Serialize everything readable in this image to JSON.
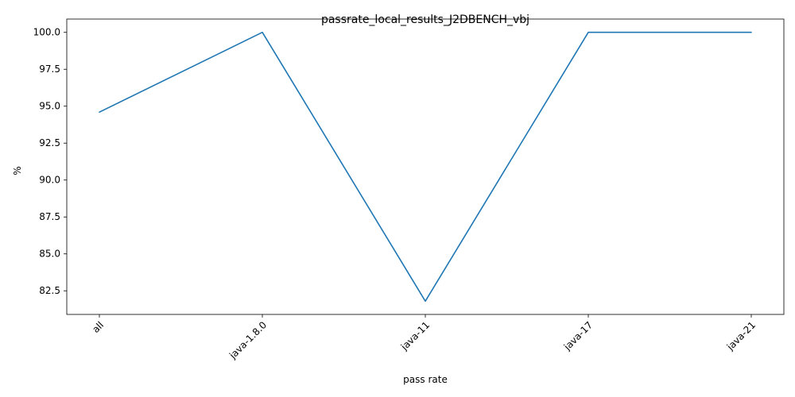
{
  "chart_data": {
    "type": "line",
    "title": "passrate_local_results_J2DBENCH_vbj",
    "xlabel": "pass rate",
    "ylabel": "%",
    "categories": [
      "all",
      "java-1.8.0",
      "java-11",
      "java-17",
      "java-21"
    ],
    "series": [
      {
        "values": [
          94.6,
          100.0,
          81.8,
          100.0,
          100.0
        ],
        "color": "#1f77b4"
      }
    ],
    "yticks": [
      82.5,
      85.0,
      87.5,
      90.0,
      92.5,
      95.0,
      97.5,
      100.0
    ],
    "ytick_labels": [
      "82.5",
      "85.0",
      "87.5",
      "90.0",
      "92.5",
      "95.0",
      "97.5",
      "100.0"
    ],
    "ylim": [
      80.9,
      100.9
    ],
    "grid": false,
    "legend": "none"
  }
}
